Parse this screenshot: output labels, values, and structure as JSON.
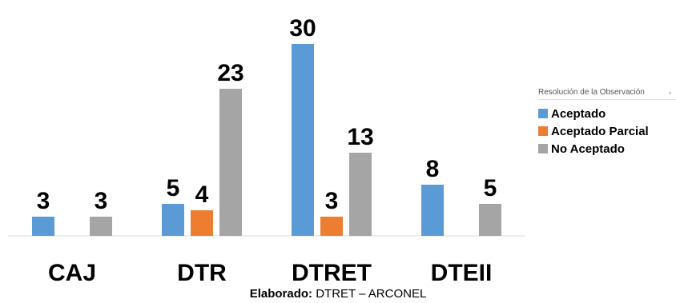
{
  "chart_data": {
    "type": "bar",
    "categories": [
      "CAJ",
      "DTR",
      "DTRET",
      "DTEII"
    ],
    "series": [
      {
        "name": "Aceptado",
        "color": "#5B9BD5",
        "values": [
          3,
          5,
          30,
          8
        ]
      },
      {
        "name": "Aceptado Parcial",
        "color": "#ED7D31",
        "values": [
          null,
          4,
          3,
          null
        ]
      },
      {
        "name": "No Aceptado",
        "color": "#A5A5A5",
        "values": [
          3,
          23,
          13,
          5
        ]
      }
    ],
    "legend_title": "Resolución de la Observación",
    "legend_position": "right",
    "ylim": [
      0,
      30
    ],
    "grid": false
  },
  "caption": {
    "prefix": "Elaborado:",
    "text": " DTRET – ARCONEL"
  }
}
